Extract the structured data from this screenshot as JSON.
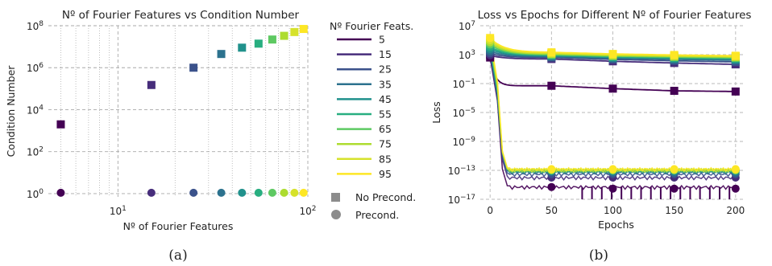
{
  "chart_data": [
    {
      "type": "scatter",
      "title": "Nº of Fourier Features vs Condition Number",
      "xlabel": "Nº of Fourier Features",
      "ylabel": "Condition Number",
      "xscale": "log",
      "yscale": "log",
      "xlim": [
        4.3,
        100
      ],
      "ylim": [
        0.7,
        100000000
      ],
      "grid": true,
      "xticks": [
        {
          "value": 10,
          "label": "10",
          "sup": "1"
        },
        {
          "value": 100,
          "label": "10",
          "sup": "2"
        }
      ],
      "yticks": [
        {
          "value": 1,
          "label": "10",
          "sup": "0"
        },
        {
          "value": 100,
          "label": "10",
          "sup": "2"
        },
        {
          "value": 10000,
          "label": "10",
          "sup": "4"
        },
        {
          "value": 1000000,
          "label": "10",
          "sup": "6"
        },
        {
          "value": 100000000,
          "label": "10",
          "sup": "8"
        }
      ],
      "x": [
        5,
        15,
        25,
        35,
        45,
        55,
        65,
        75,
        85,
        95
      ],
      "series": [
        {
          "name": "No Precond.",
          "marker": "square",
          "values": [
            2000,
            150000,
            1000000,
            4500000,
            9000000,
            14000000,
            22000000,
            33000000,
            50000000,
            70000000
          ]
        },
        {
          "name": "Precond.",
          "marker": "circle",
          "values": [
            1.1,
            1.1,
            1.1,
            1.1,
            1.1,
            1.1,
            1.1,
            1.1,
            1.1,
            1.1
          ]
        }
      ],
      "legend_placement": "right",
      "colors": [
        "#440154",
        "#472d7b",
        "#3b528b",
        "#2c728e",
        "#21918c",
        "#28ae80",
        "#5ec962",
        "#addc30",
        "#d6e22b",
        "#fde725"
      ],
      "caption": "(a)"
    },
    {
      "type": "line",
      "title": "Loss vs Epochs for Different Nº of Fourier Features",
      "xlabel": "Epochs",
      "ylabel": "Loss",
      "yscale": "log",
      "xlim": [
        -8,
        208
      ],
      "ylim": [
        1e-17,
        10000000
      ],
      "grid": true,
      "xticks": [
        0,
        50,
        100,
        150,
        200
      ],
      "yticks": [
        {
          "value": 1e-17,
          "label": "10",
          "sup": "−17"
        },
        {
          "value": 1e-13,
          "label": "10",
          "sup": "−13"
        },
        {
          "value": 1e-09,
          "label": "10",
          "sup": "−9"
        },
        {
          "value": 1e-05,
          "label": "10",
          "sup": "−5"
        },
        {
          "value": 0.1,
          "label": "10",
          "sup": "−1"
        },
        {
          "value": 1000,
          "label": "10",
          "sup": "3"
        },
        {
          "value": 10000000,
          "label": "10",
          "sup": "7"
        }
      ],
      "legend_title": "Nº Fourier Feats.",
      "legend_labels": [
        "5",
        "15",
        "25",
        "35",
        "45",
        "55",
        "65",
        "75",
        "85",
        "95"
      ],
      "marker_legend": [
        "No Precond.",
        "Precond."
      ],
      "marker_epochs": [
        0,
        50,
        100,
        150,
        200
      ],
      "no_precond_values": [
        [
          400,
          0.05,
          0.02,
          0.01,
          0.008
        ],
        [
          800,
          250,
          120,
          70,
          45
        ],
        [
          1500,
          400,
          220,
          140,
          100
        ],
        [
          3000,
          550,
          320,
          220,
          170
        ],
        [
          6000,
          700,
          420,
          300,
          240
        ],
        [
          12000,
          850,
          520,
          380,
          300
        ],
        [
          25000,
          1000,
          620,
          460,
          370
        ],
        [
          50000,
          1250,
          760,
          560,
          450
        ],
        [
          100000,
          1600,
          950,
          700,
          560
        ],
        [
          200000,
          2100,
          1250,
          900,
          700
        ]
      ],
      "precond_values": [
        [
          400,
          5e-16,
          3e-16,
          3e-16,
          3e-16
        ],
        [
          800,
          1e-14,
          1e-14,
          1e-14,
          1e-14
        ],
        [
          1500,
          3e-14,
          3e-14,
          3e-14,
          3e-14
        ],
        [
          3000,
          6e-14,
          5e-14,
          5e-14,
          5e-14
        ],
        [
          6000,
          8e-14,
          8e-14,
          8e-14,
          8e-14
        ],
        [
          12000,
          1e-13,
          1e-13,
          1e-13,
          1e-13
        ],
        [
          25000,
          1e-13,
          1e-13,
          1e-13,
          1e-13
        ],
        [
          50000,
          1.2e-13,
          1.2e-13,
          1.2e-13,
          1.2e-13
        ],
        [
          100000,
          1.2e-13,
          1.2e-13,
          1.2e-13,
          1.2e-13
        ],
        [
          200000,
          1.5e-13,
          1.5e-13,
          1.5e-13,
          1.5e-13
        ]
      ],
      "caption": "(b)"
    }
  ]
}
